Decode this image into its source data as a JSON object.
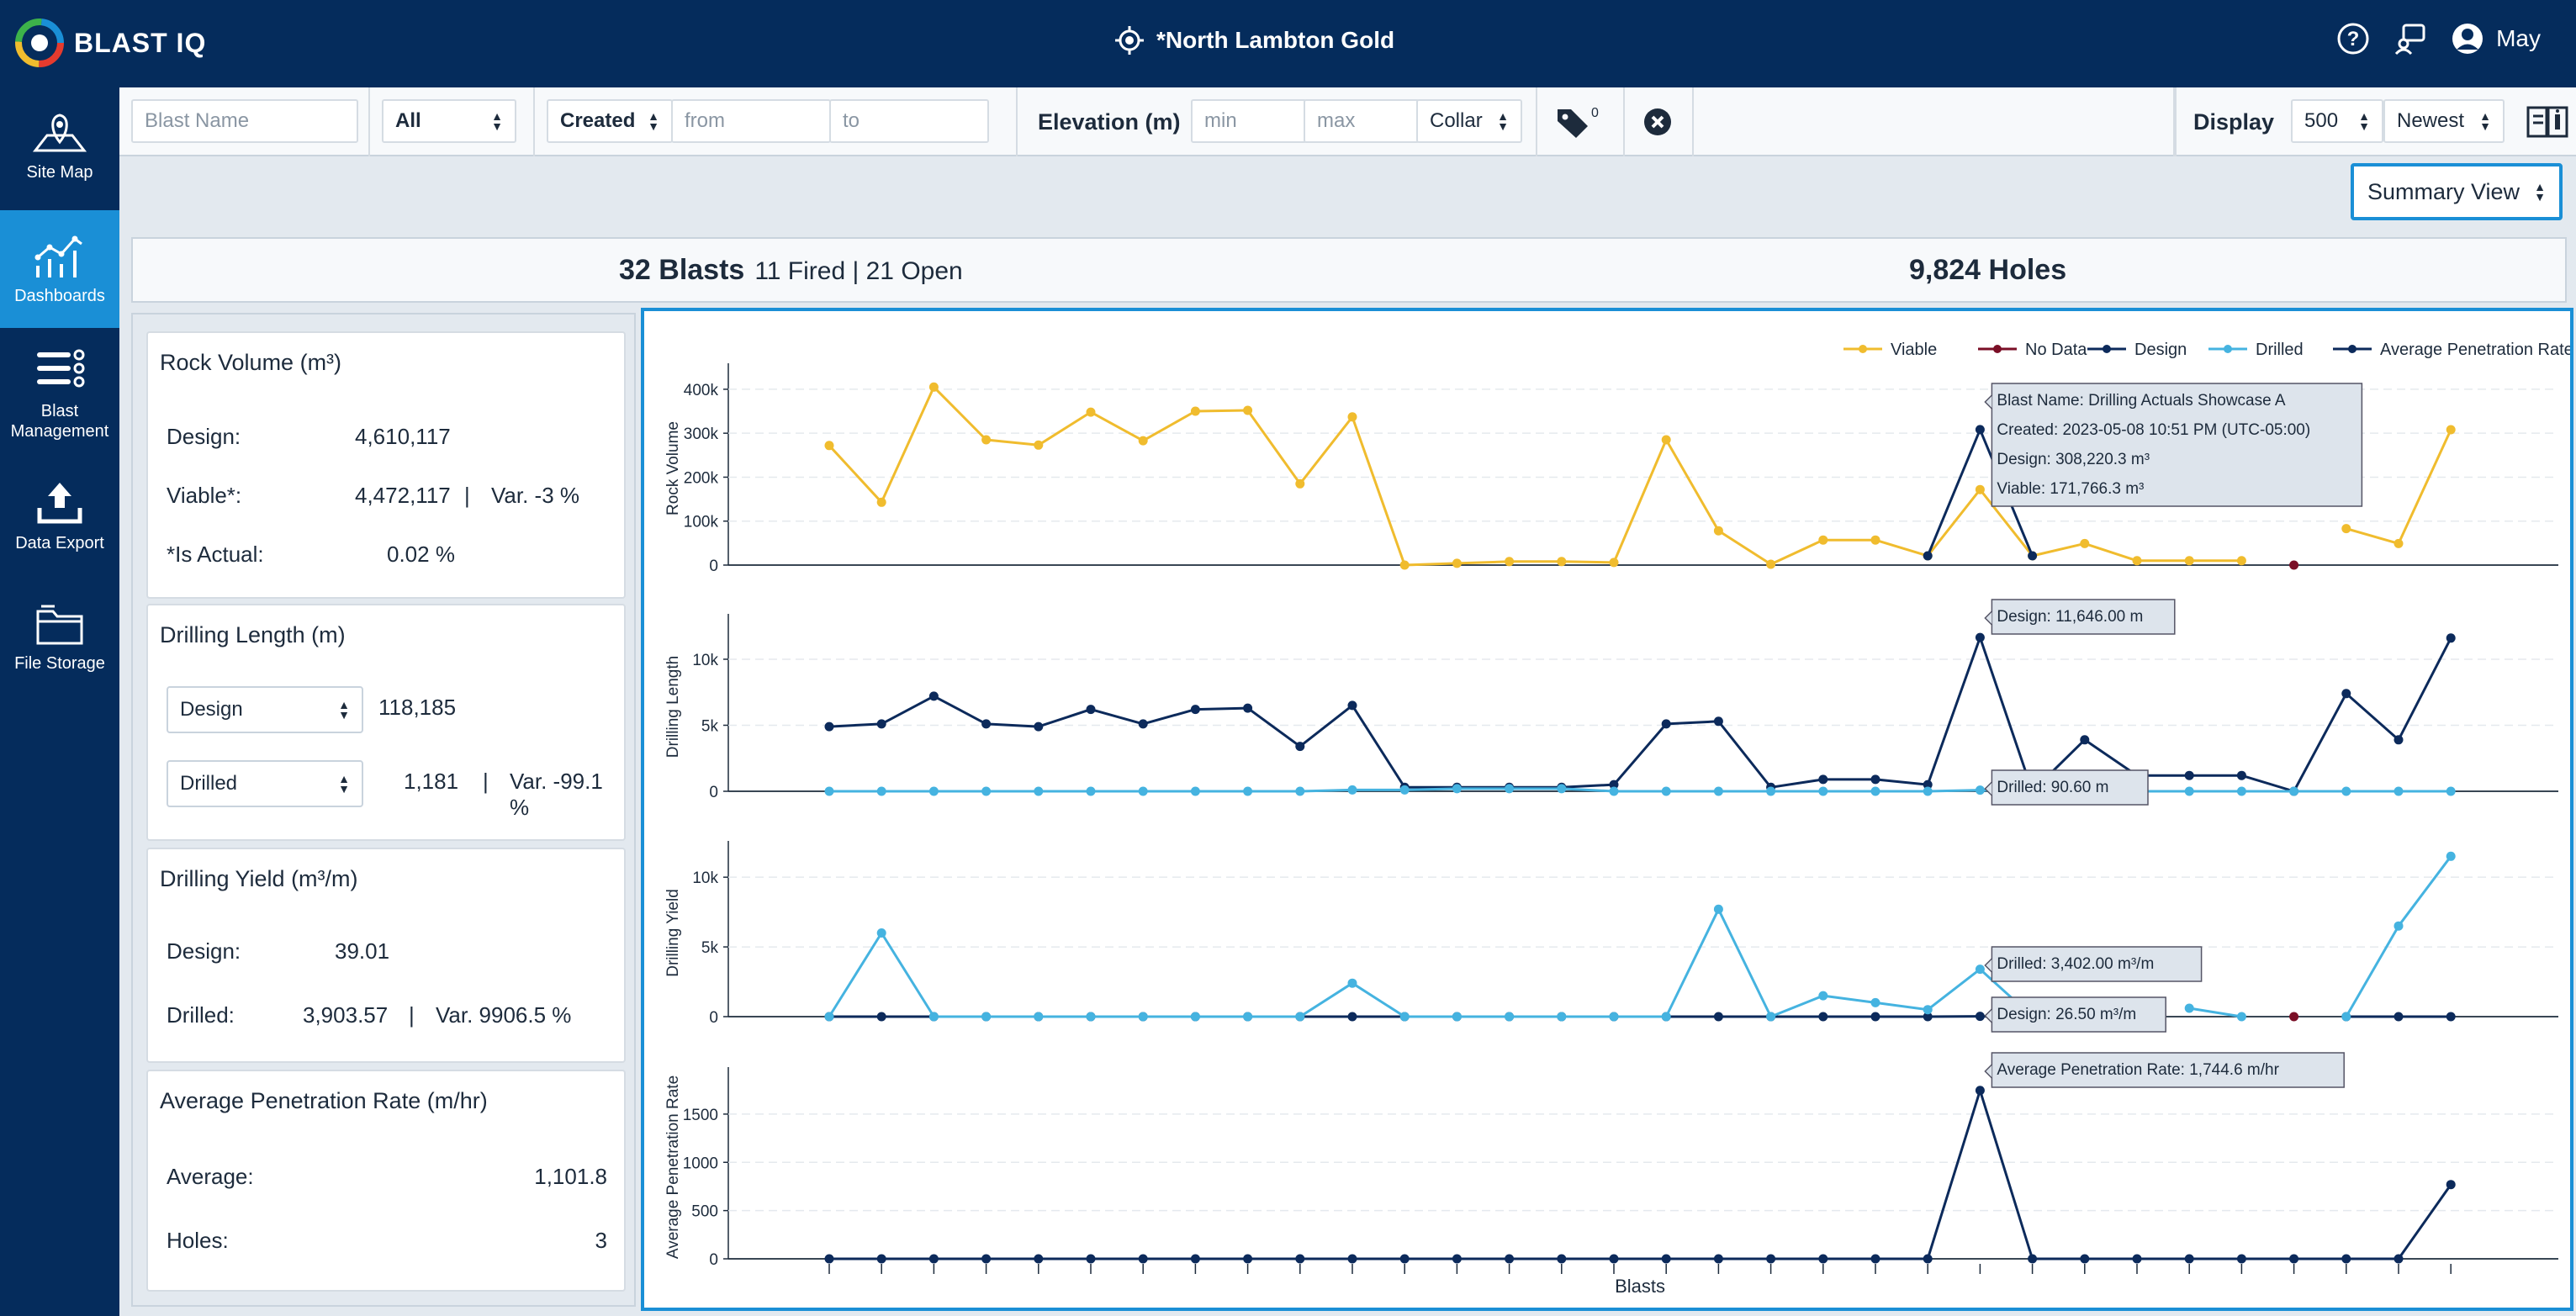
{
  "header": {
    "brand": "BLAST IQ",
    "site_name": "*North Lambton Gold",
    "user_name": "May",
    "icons": [
      "location-target-icon",
      "help-icon",
      "chat-icon",
      "user-avatar-icon"
    ]
  },
  "sidebar": {
    "items": [
      {
        "label": "Site Map",
        "icon": "map-pin-icon",
        "active": false
      },
      {
        "label": "Dashboards",
        "icon": "line-chart-icon",
        "active": true
      },
      {
        "label": "Blast Management",
        "icon": "list-icon",
        "active": false
      },
      {
        "label": "Data Export",
        "icon": "upload-icon",
        "active": false
      },
      {
        "label": "File Storage",
        "icon": "folder-icon",
        "active": false
      }
    ]
  },
  "filters": {
    "blast_name_placeholder": "Blast Name",
    "status_value": "All",
    "date_type_value": "Created",
    "from_placeholder": "from",
    "to_placeholder": "to",
    "elevation_label": "Elevation (m)",
    "min_placeholder": "min",
    "max_placeholder": "max",
    "elevation_ref_value": "Collar",
    "tag_count": "0",
    "display_label": "Display",
    "display_count_value": "500",
    "sort_value": "Newest"
  },
  "view": {
    "mode": "Summary View"
  },
  "stats": {
    "blasts": "32 Blasts",
    "blast_detail": "11 Fired | 21 Open",
    "holes": "9,824 Holes"
  },
  "cards": {
    "rock_volume": {
      "title": "Rock Volume (m³)",
      "design_label": "Design:",
      "design_value": "4,610,117",
      "viable_label": "Viable*:",
      "viable_value": "4,472,117",
      "viable_var": "Var. -3 %",
      "actual_label": "*Is Actual:",
      "actual_value": "0.02 %"
    },
    "drilling_length": {
      "title": "Drilling Length (m)",
      "select1": "Design",
      "value1": "118,185",
      "select2": "Drilled",
      "value2": "1,181",
      "var2": "Var. -99.1 %"
    },
    "drilling_yield": {
      "title": "Drilling Yield (m³/m)",
      "design_label": "Design:",
      "design_value": "39.01",
      "drilled_label": "Drilled:",
      "drilled_value": "3,903.57",
      "drilled_var": "Var. 9906.5 %"
    },
    "penetration": {
      "title": "Average Penetration Rate (m/hr)",
      "average_label": "Average:",
      "average_value": "1,101.8",
      "holes_label": "Holes:",
      "holes_value": "3"
    }
  },
  "chart_data": {
    "type": "line",
    "xlabel": "Blasts",
    "n_points": 32,
    "legend": [
      {
        "name": "Viable",
        "color": "#f0bc2e"
      },
      {
        "name": "No Data",
        "color": "#7a0e26"
      },
      {
        "name": "Design",
        "color": "#0c2a5b"
      },
      {
        "name": "Drilled",
        "color": "#45b3e0"
      },
      {
        "name": "Average Penetration Rate",
        "color": "#0c2a5b"
      }
    ],
    "legend_position": "top-right",
    "panels": [
      {
        "ylabel": "Rock Volume",
        "yticks": [
          "0",
          "100k",
          "200k",
          "300k",
          "400k"
        ],
        "ylim": [
          0,
          440000
        ],
        "series": [
          {
            "name": "Viable",
            "color": "#f0bc2e",
            "values": [
              272000,
              143000,
              405000,
              285000,
              273000,
              348000,
              283000,
              350000,
              352000,
              185000,
              337000,
              0,
              4000,
              8000,
              8000,
              6000,
              285000,
              78000,
              2000,
              57000,
              57000,
              21000,
              171766,
              21000,
              49000,
              10000,
              10000,
              10000,
              null,
              83000,
              49000,
              308000
            ]
          },
          {
            "name": "Design",
            "color": "#0c2a5b",
            "values": [
              null,
              null,
              null,
              null,
              null,
              null,
              null,
              null,
              null,
              null,
              null,
              null,
              null,
              null,
              null,
              null,
              null,
              null,
              null,
              null,
              null,
              21000,
              308220,
              21000,
              null,
              null,
              null,
              null,
              null,
              null,
              null,
              null
            ]
          },
          {
            "name": "No Data",
            "color": "#7a0e26",
            "values": [
              null,
              null,
              null,
              null,
              null,
              null,
              null,
              null,
              null,
              null,
              null,
              null,
              null,
              null,
              null,
              null,
              null,
              null,
              null,
              null,
              null,
              null,
              null,
              null,
              null,
              null,
              null,
              null,
              0,
              null,
              null,
              null
            ]
          }
        ],
        "tooltip": [
          "Blast Name: Drilling Actuals Showcase A",
          "Created: 2023-05-08 10:51 PM (UTC-05:00)",
          "Design: 308,220.3 m³",
          "Viable: 171,766.3 m³"
        ]
      },
      {
        "ylabel": "Drilling Length",
        "yticks": [
          "0",
          "5k",
          "10k"
        ],
        "ylim": [
          0,
          12800
        ],
        "series": [
          {
            "name": "Design",
            "color": "#0c2a5b",
            "values": [
              4900,
              5100,
              7200,
              5100,
              4900,
              6200,
              5100,
              6200,
              6300,
              3400,
              6500,
              300,
              300,
              300,
              300,
              500,
              5100,
              5300,
              300,
              900,
              900,
              500,
              11646,
              0,
              3900,
              1200,
              1200,
              1200,
              0,
              7400,
              3900,
              11600
            ]
          },
          {
            "name": "Drilled",
            "color": "#45b3e0",
            "values": [
              0,
              0,
              0,
              0,
              0,
              0,
              0,
              0,
              0,
              0,
              100,
              100,
              200,
              200,
              200,
              0,
              0,
              0,
              0,
              0,
              0,
              0,
              90.6,
              0,
              0,
              0,
              0,
              0,
              0,
              0,
              0,
              0
            ]
          }
        ],
        "labels": [
          "Design: 11,646.00 m",
          "Drilled: 90.60 m"
        ]
      },
      {
        "ylabel": "Drilling Yield",
        "yticks": [
          "0",
          "5k",
          "10k"
        ],
        "ylim": [
          0,
          12000
        ],
        "series": [
          {
            "name": "Design",
            "color": "#0c2a5b",
            "values": [
              0,
              0,
              0,
              0,
              0,
              0,
              0,
              0,
              0,
              0,
              0,
              0,
              0,
              0,
              0,
              0,
              0,
              0,
              0,
              0,
              0,
              0,
              26.5,
              0,
              null,
              null,
              null,
              null,
              null,
              0,
              0,
              0
            ]
          },
          {
            "name": "Drilled",
            "color": "#45b3e0",
            "values": [
              0,
              6000,
              0,
              0,
              0,
              0,
              0,
              0,
              0,
              0,
              2400,
              0,
              0,
              0,
              0,
              0,
              0,
              7700,
              0,
              1500,
              1000,
              500,
              3402,
              0,
              null,
              null,
              600,
              0,
              null,
              0,
              6500,
              11500
            ]
          },
          {
            "name": "No Data",
            "color": "#7a0e26",
            "values": [
              null,
              null,
              null,
              null,
              null,
              null,
              null,
              null,
              null,
              null,
              null,
              null,
              null,
              null,
              null,
              null,
              null,
              null,
              null,
              null,
              null,
              null,
              null,
              null,
              null,
              null,
              null,
              null,
              0,
              null,
              null,
              null
            ]
          }
        ],
        "labels": [
          "Drilled: 3,402.00 m³/m",
          "Design: 26.50 m³/m"
        ]
      },
      {
        "ylabel": "Average Penetration Rate",
        "yticks": [
          "0",
          "500",
          "1000",
          "1500"
        ],
        "ylim": [
          0,
          1900
        ],
        "series": [
          {
            "name": "Average Penetration Rate",
            "color": "#0c2a5b",
            "values": [
              0,
              0,
              0,
              0,
              0,
              0,
              0,
              0,
              0,
              0,
              0,
              0,
              0,
              0,
              0,
              0,
              0,
              0,
              0,
              0,
              0,
              0,
              1744.6,
              0,
              0,
              0,
              0,
              0,
              0,
              0,
              0,
              770
            ]
          }
        ],
        "labels": [
          "Average Penetration Rate: 1,744.6 m/hr"
        ]
      }
    ]
  }
}
